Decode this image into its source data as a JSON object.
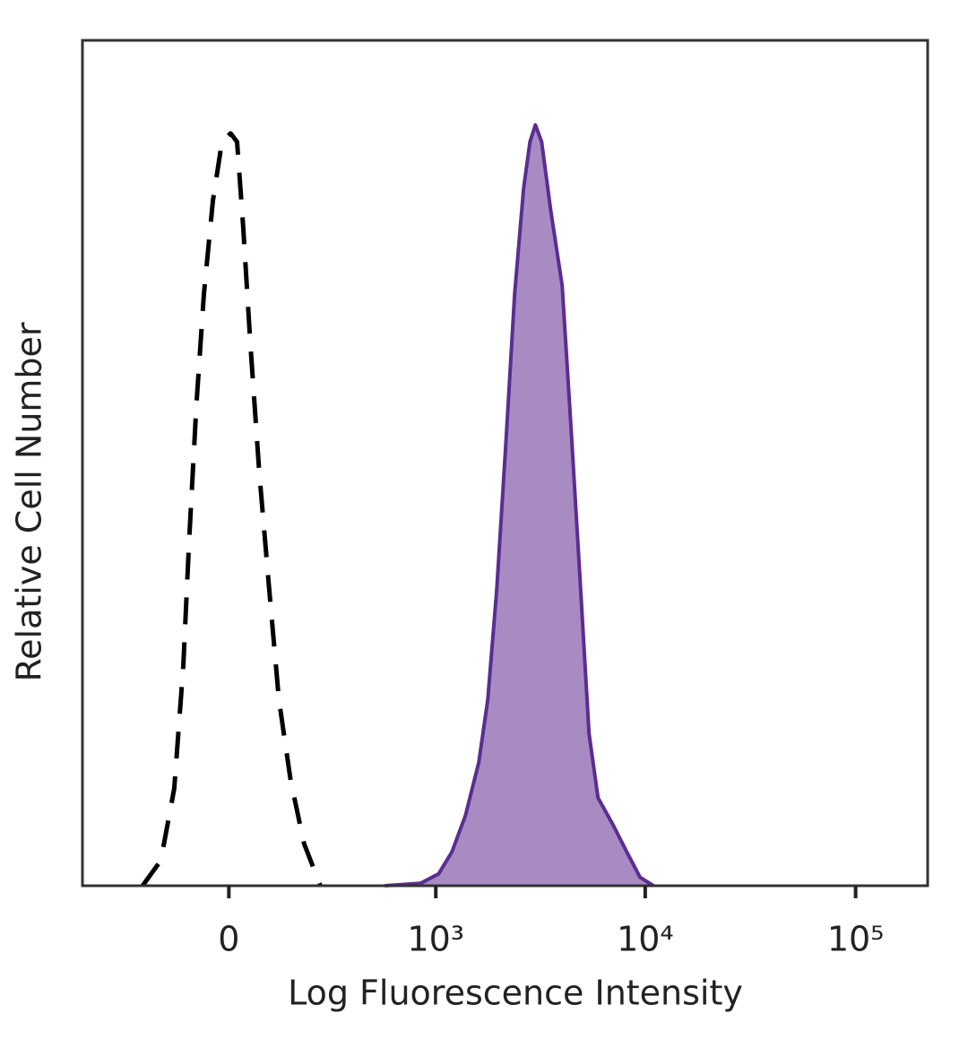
{
  "chart_data": {
    "type": "histogram-overlay",
    "x_label": "Log Fluorescence Intensity",
    "y_label": "Relative Cell Number",
    "xscale": "asinh",
    "xlim": [
      -500,
      220000
    ],
    "xticks": [
      0,
      {
        "value": 1000,
        "label": "10³"
      },
      {
        "value": 10000,
        "label": "10⁴"
      },
      {
        "value": 100000,
        "label": "10⁵"
      }
    ],
    "ylim": [
      0,
      100
    ],
    "series": [
      {
        "color": "#000000",
        "style": "dashed",
        "fill": false,
        "x": [
          -229,
          -171,
          -133,
          -109,
          -94,
          -76,
          -58,
          -37,
          -16,
          4,
          19,
          33,
          50,
          71,
          94,
          121,
          153,
          193,
          247
        ],
        "values": [
          0,
          3,
          11.5,
          26,
          41,
          57,
          70,
          81,
          88,
          89,
          88,
          78,
          64,
          49,
          36,
          22,
          12.5,
          5,
          0
        ]
      },
      {
        "color": "#5b2d91",
        "style": "solid",
        "fill": "#a98bc4",
        "x": [
          559,
          844,
          1031,
          1197,
          1390,
          1611,
          1779,
          1964,
          2167,
          2392,
          2640,
          2829,
          3001,
          3215,
          3547,
          4028,
          4444,
          4906,
          5405,
          5964,
          7035,
          8169,
          9450,
          10941
        ],
        "values": [
          0,
          0.3,
          1.4,
          4,
          8.3,
          14.6,
          22,
          35,
          52,
          70,
          82.5,
          88,
          90,
          88,
          80,
          71,
          54,
          36,
          18,
          10.4,
          7.2,
          4,
          1,
          0
        ]
      }
    ]
  }
}
